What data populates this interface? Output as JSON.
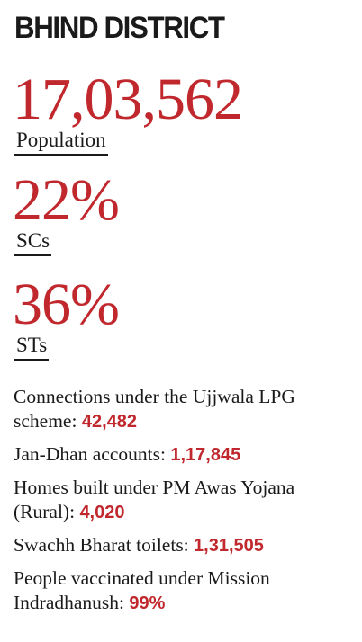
{
  "title": "BHIND DISTRICT",
  "stats": [
    {
      "value": "17,03,562",
      "label": "Population"
    },
    {
      "value": "22%",
      "label": "SCs"
    },
    {
      "value": "36%",
      "label": "STs"
    }
  ],
  "facts": [
    {
      "text": "Connections under the Ujjwala LPG scheme:",
      "value": "42,482"
    },
    {
      "text": "Jan-Dhan accounts:",
      "value": "1,17,845"
    },
    {
      "text": "Homes built under PM Awas Yojana (Rural):",
      "value": "4,020"
    },
    {
      "text": "Swachh Bharat toilets:",
      "value": "1,31,505"
    },
    {
      "text": "People vaccinated under Mission Indradhanush:",
      "value": "99%"
    }
  ],
  "colors": {
    "accent": "#c0282d",
    "text": "#1a1a1a"
  }
}
